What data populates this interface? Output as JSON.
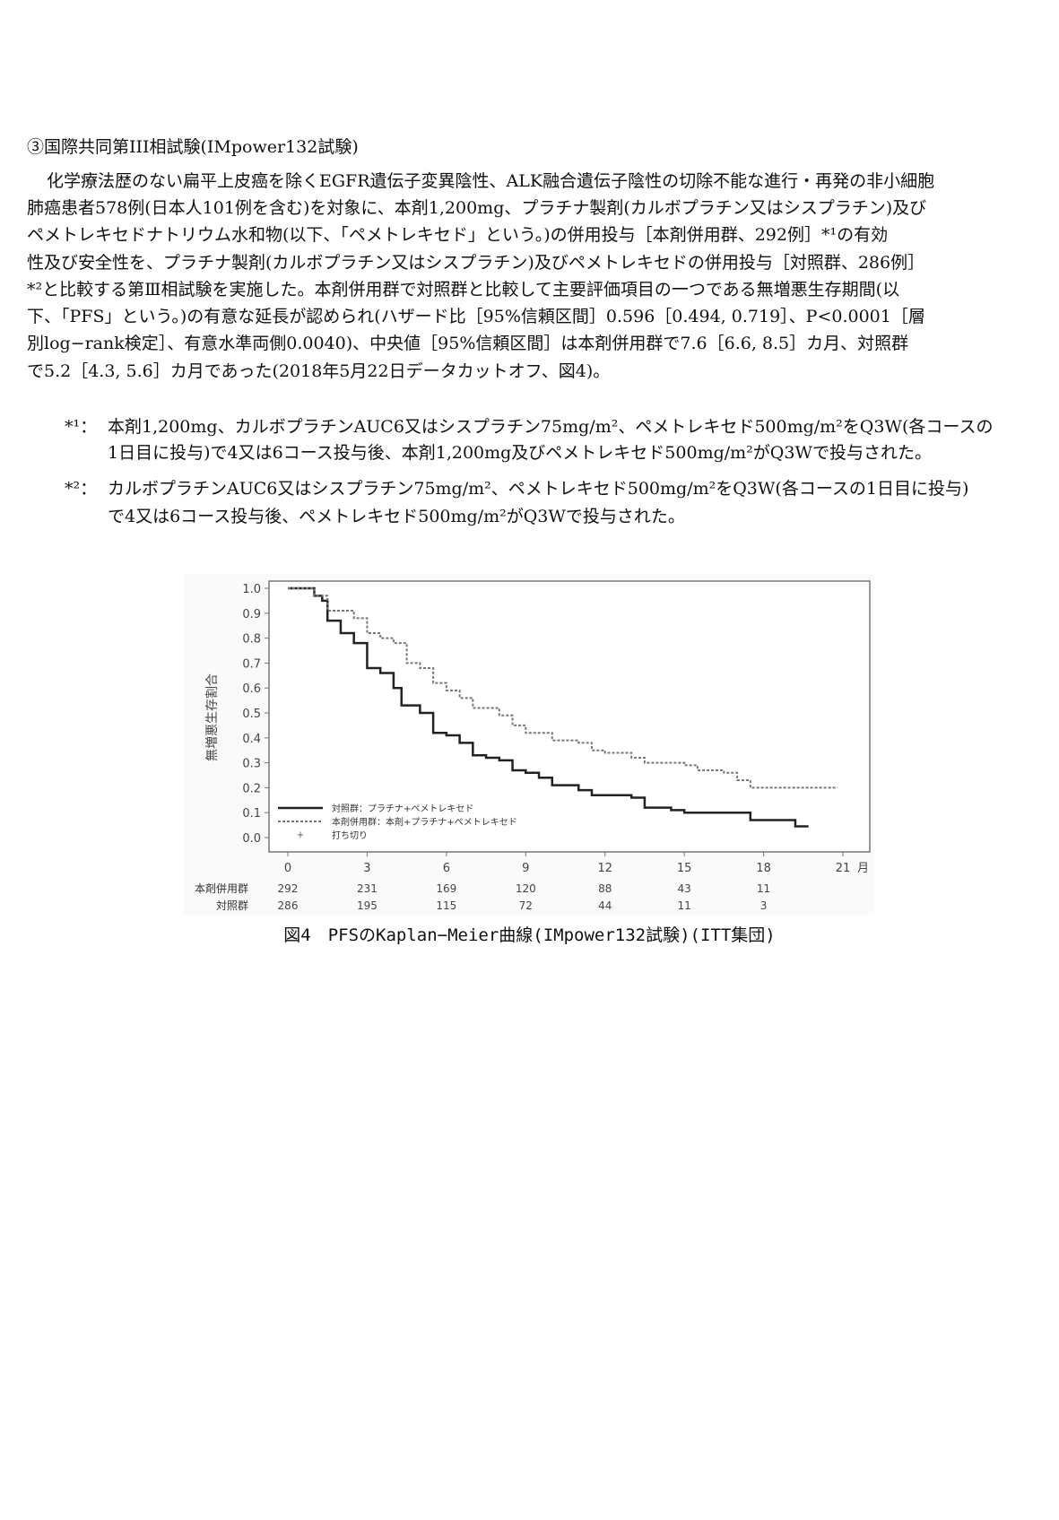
{
  "heading": "③国際共同第III相試験(IMpower132試験)",
  "body_lines": [
    "化学療法歴のない扁平上皮癌を除くEGFR遺伝子変異陰性、ALK融合遺伝子陰性の切除不能な進行・再発の非小細胞",
    "肺癌患者578例(日本人101例を含む)を対象に、本剤1,200mg、プラチナ製剤(カルボプラチン又はシスプラチン)及び",
    "ペメトレキセドナトリウム水和物(以下、「ペメトレキセド」という。)の併用投与［本剤併用群、292例］*¹の有効",
    "性及び安全性を、プラチナ製剤(カルボプラチン又はシスプラチン)及びペメトレキセドの併用投与［対照群、286例］",
    "*²と比較する第Ⅲ相試験を実施した。本剤併用群で対照群と比較して主要評価項目の一つである無増悪生存期間(以",
    "下、「PFS」という。)の有意な延長が認められ(ハザード比［95%信頼区間］0.596［0.494, 0.719］、P<0.0001［層",
    "別log−rank検定］、有意水準両側0.0040)、中央値［95%信頼区間］は本剤併用群で7.6［6.6, 8.5］カ月、対照群",
    "で5.2［4.3, 5.6］カ月であった(2018年5月22日データカットオフ、図4)。"
  ],
  "footnotes": [
    {
      "mark": "*¹：",
      "lines": [
        "本剤1,200mg、カルボプラチンAUC6又はシスプラチン75mg/m²、ペメトレキセド500mg/m²をQ3W(各コースの",
        "1日目に投与)で4又は6コース投与後、本剤1,200mg及びペメトレキセド500mg/m²がQ3Wで投与された。"
      ]
    },
    {
      "mark": "*²：",
      "lines": [
        "カルボプラチンAUC6又はシスプラチン75mg/m²、ペメトレキセド500mg/m²をQ3W(各コースの1日目に投与)",
        "で4又は6コース投与後、ペメトレキセド500mg/m²がQ3Wで投与された。"
      ]
    }
  ],
  "chart_data": {
    "type": "line",
    "title": "",
    "ylabel": "無増悪生存割合",
    "xunit": "月",
    "xlim": [
      0,
      21
    ],
    "ylim": [
      0,
      1.0
    ],
    "xticks": [
      0,
      3,
      6,
      9,
      12,
      15,
      18,
      21
    ],
    "yticks": [
      "0.0",
      "0.1",
      "0.2",
      "0.3",
      "0.4",
      "0.5",
      "0.6",
      "0.7",
      "0.8",
      "0.9",
      "1.0"
    ],
    "grid": false,
    "legend_placement": "bottom-left",
    "legend": [
      "対照群：プラチナ+ペメトレキセド",
      "本剤併用群：本剤+プラチナ+ペメトレキセド",
      "打ち切り"
    ],
    "series": [
      {
        "name": "対照群：プラチナ+ペメトレキセド",
        "style": "solid",
        "x": [
          0,
          1,
          1.3,
          1.5,
          2,
          2.5,
          3,
          3.5,
          4,
          4.3,
          5,
          5.5,
          6,
          6.5,
          7,
          7.5,
          8,
          8.5,
          9,
          9.5,
          10,
          11,
          11.5,
          13,
          13.5,
          14.5,
          15,
          17.5,
          19.2,
          19.7
        ],
        "y": [
          1.0,
          0.97,
          0.95,
          0.87,
          0.82,
          0.78,
          0.68,
          0.66,
          0.6,
          0.53,
          0.5,
          0.42,
          0.41,
          0.38,
          0.33,
          0.32,
          0.31,
          0.27,
          0.26,
          0.24,
          0.21,
          0.19,
          0.17,
          0.16,
          0.12,
          0.11,
          0.1,
          0.07,
          0.045,
          0.045
        ]
      },
      {
        "name": "本剤併用群：本剤+プラチナ+ペメトレキセド",
        "style": "dashed",
        "x": [
          0,
          1,
          1.5,
          2.5,
          3,
          3.5,
          4,
          4.5,
          5,
          5.5,
          6,
          6.5,
          7,
          8,
          8.5,
          9,
          10,
          11,
          11.5,
          12,
          13,
          13.5,
          14.5,
          15,
          15.5,
          16.5,
          17,
          17.5,
          20.8
        ],
        "y": [
          1.0,
          0.97,
          0.91,
          0.88,
          0.82,
          0.8,
          0.78,
          0.7,
          0.68,
          0.62,
          0.59,
          0.56,
          0.52,
          0.49,
          0.45,
          0.42,
          0.39,
          0.38,
          0.35,
          0.34,
          0.32,
          0.3,
          0.3,
          0.29,
          0.27,
          0.26,
          0.23,
          0.2,
          0.2
        ]
      }
    ],
    "at_risk": [
      {
        "label": "本剤併用群",
        "values": [
          "292",
          "231",
          "169",
          "120",
          "88",
          "43",
          "11"
        ]
      },
      {
        "label": "対照群",
        "values": [
          "286",
          "195",
          "115",
          "72",
          "44",
          "11",
          "3"
        ]
      }
    ]
  },
  "caption": "図4　PFSのKaplan−Meier曲線(IMpower132試験)(ITT集団)"
}
